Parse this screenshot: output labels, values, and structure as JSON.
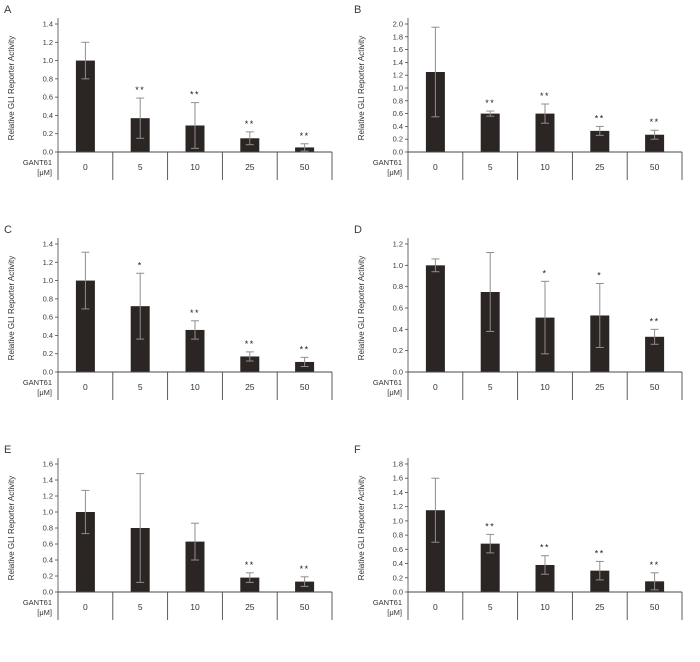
{
  "figure_name": "GLI reporter activity dose response panels",
  "chart_data": [
    {
      "panel": "A",
      "type": "bar",
      "ylabel": "Relative GLI Reporter Activity",
      "xlabel_line1": "GANT61",
      "xlabel_line2": "[μM]",
      "categories": [
        "0",
        "5",
        "10",
        "25",
        "50"
      ],
      "values": [
        1.0,
        0.37,
        0.29,
        0.15,
        0.05
      ],
      "errors": [
        0.2,
        0.22,
        0.25,
        0.07,
        0.04
      ],
      "significance": [
        "",
        "**",
        "**",
        "**",
        "**"
      ],
      "ylim": [
        0,
        1.4
      ],
      "ytick": 0.2,
      "bar_color": "#2b2523",
      "error_color": "#8f8f8f",
      "grid": "off",
      "legend": "none"
    },
    {
      "panel": "B",
      "type": "bar",
      "ylabel": "Relative GLI Reporter Activity",
      "xlabel_line1": "GANT61",
      "xlabel_line2": "[μM]",
      "categories": [
        "0",
        "5",
        "10",
        "25",
        "50"
      ],
      "values": [
        1.25,
        0.6,
        0.6,
        0.33,
        0.27
      ],
      "errors": [
        0.7,
        0.04,
        0.15,
        0.07,
        0.07
      ],
      "significance": [
        "",
        "**",
        "**",
        "**",
        "**"
      ],
      "ylim": [
        0,
        2.0
      ],
      "ytick": 0.2,
      "bar_color": "#2b2523",
      "error_color": "#8f8f8f",
      "grid": "off",
      "legend": "none"
    },
    {
      "panel": "C",
      "type": "bar",
      "ylabel": "Relative GLI Reporter Activity",
      "xlabel_line1": "GANT61",
      "xlabel_line2": "[μM]",
      "categories": [
        "0",
        "5",
        "10",
        "25",
        "50"
      ],
      "values": [
        1.0,
        0.72,
        0.46,
        0.17,
        0.11
      ],
      "errors": [
        0.31,
        0.36,
        0.1,
        0.05,
        0.05
      ],
      "significance": [
        "",
        "*",
        "**",
        "**",
        "**"
      ],
      "ylim": [
        0,
        1.4
      ],
      "ytick": 0.2,
      "bar_color": "#2b2523",
      "error_color": "#8f8f8f",
      "grid": "off",
      "legend": "none"
    },
    {
      "panel": "D",
      "type": "bar",
      "ylabel": "Relative GLI Reporter Activity",
      "xlabel_line1": "GANT61",
      "xlabel_line2": "[μM]",
      "categories": [
        "0",
        "5",
        "10",
        "25",
        "50"
      ],
      "values": [
        1.0,
        0.75,
        0.51,
        0.53,
        0.33
      ],
      "errors": [
        0.06,
        0.37,
        0.34,
        0.3,
        0.07
      ],
      "significance": [
        "",
        "",
        "*",
        "*",
        "**"
      ],
      "ylim": [
        0,
        1.2
      ],
      "ytick": 0.2,
      "bar_color": "#2b2523",
      "error_color": "#8f8f8f",
      "grid": "off",
      "legend": "none"
    },
    {
      "panel": "E",
      "type": "bar",
      "ylabel": "Relative GLI Reporter Activity",
      "xlabel_line1": "GANT61",
      "xlabel_line2": "[μM]",
      "categories": [
        "0",
        "5",
        "10",
        "25",
        "50"
      ],
      "values": [
        1.0,
        0.8,
        0.63,
        0.18,
        0.13
      ],
      "errors": [
        0.27,
        0.68,
        0.23,
        0.06,
        0.06
      ],
      "significance": [
        "",
        "",
        "",
        "**",
        "**"
      ],
      "ylim": [
        0,
        1.6
      ],
      "ytick": 0.2,
      "bar_color": "#2b2523",
      "error_color": "#8f8f8f",
      "grid": "off",
      "legend": "none"
    },
    {
      "panel": "F",
      "type": "bar",
      "ylabel": "Relative GLI Reporter Activity",
      "xlabel_line1": "GANT61",
      "xlabel_line2": "[μM]",
      "categories": [
        "0",
        "5",
        "10",
        "25",
        "50"
      ],
      "values": [
        1.15,
        0.68,
        0.38,
        0.3,
        0.15
      ],
      "errors": [
        0.45,
        0.13,
        0.13,
        0.13,
        0.12
      ],
      "significance": [
        "",
        "**",
        "**",
        "**",
        "**"
      ],
      "ylim": [
        0,
        1.8
      ],
      "ytick": 0.2,
      "bar_color": "#2b2523",
      "error_color": "#8f8f8f",
      "grid": "off",
      "legend": "none"
    }
  ]
}
